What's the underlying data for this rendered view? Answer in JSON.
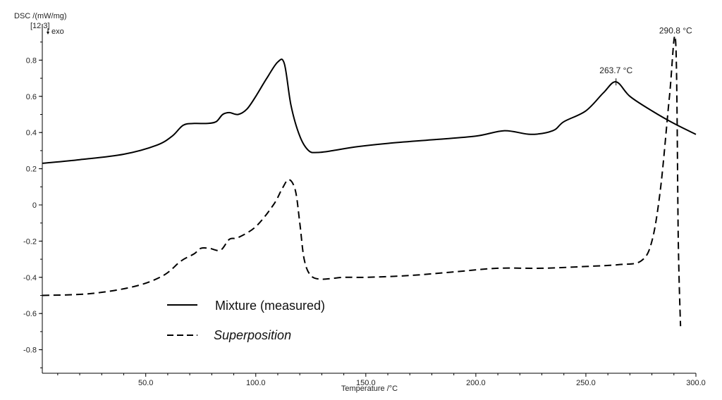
{
  "chart_data": {
    "type": "line",
    "ylabel": "DSC /(mW/mg)",
    "ylabel_sub": "[12.3]",
    "exo_label": "exo",
    "xlabel": "Temperature /°C",
    "xlim": [
      3,
      300
    ],
    "ylim": [
      -0.93,
      1.0
    ],
    "x_ticks": [
      50,
      100,
      150,
      200,
      250,
      300
    ],
    "x_tick_labels": [
      "50.0",
      "100.0",
      "150.0",
      "200.0",
      "250.0",
      "300.0"
    ],
    "y_ticks": [
      -0.8,
      -0.6,
      -0.4,
      -0.2,
      0,
      0.2,
      0.4,
      0.6,
      0.8
    ],
    "y_tick_labels": [
      "-0.8",
      "-0.6",
      "-0.4",
      "-0.2",
      "0",
      "0.2",
      "0.4",
      "0.6",
      "0.8"
    ],
    "grid": false,
    "legend_position": "bottom-left",
    "series": [
      {
        "name": "Mixture (measured)",
        "style": "solid",
        "italic": false,
        "color": "#000000",
        "x": [
          3,
          20,
          40,
          55,
          62,
          67,
          72,
          78,
          82,
          85,
          88,
          92,
          96,
          100,
          105,
          110,
          113,
          116,
          120,
          124,
          128,
          135,
          145,
          160,
          180,
          200,
          213,
          225,
          235,
          240,
          250,
          258,
          263.7,
          270,
          280,
          290,
          300
        ],
        "y": [
          0.23,
          0.25,
          0.28,
          0.33,
          0.38,
          0.44,
          0.45,
          0.45,
          0.46,
          0.5,
          0.51,
          0.5,
          0.53,
          0.6,
          0.7,
          0.79,
          0.78,
          0.55,
          0.38,
          0.3,
          0.29,
          0.3,
          0.32,
          0.34,
          0.36,
          0.38,
          0.41,
          0.39,
          0.41,
          0.46,
          0.52,
          0.62,
          0.68,
          0.6,
          0.52,
          0.45,
          0.39
        ]
      },
      {
        "name": "Superposition",
        "style": "dashed",
        "italic": true,
        "color": "#000000",
        "x": [
          3,
          25,
          45,
          58,
          66,
          72,
          75,
          79,
          84,
          88,
          92,
          100,
          108,
          112,
          115,
          118,
          120,
          122,
          125,
          130,
          140,
          150,
          170,
          190,
          210,
          230,
          250,
          265,
          275,
          280,
          284,
          288,
          290.8,
          292,
          293
        ],
        "y": [
          -0.5,
          -0.49,
          -0.45,
          -0.39,
          -0.31,
          -0.27,
          -0.24,
          -0.24,
          -0.25,
          -0.19,
          -0.18,
          -0.12,
          0.0,
          0.09,
          0.14,
          0.08,
          -0.1,
          -0.3,
          -0.39,
          -0.41,
          -0.4,
          -0.4,
          -0.39,
          -0.37,
          -0.35,
          -0.35,
          -0.34,
          -0.33,
          -0.31,
          -0.2,
          0.1,
          0.6,
          0.9,
          -0.2,
          -0.67
        ]
      }
    ],
    "annotations": [
      {
        "label": "263.7 °C",
        "x": 263.7,
        "y": 0.68
      },
      {
        "label": "290.8 °C",
        "x": 290.8,
        "y": 0.9
      }
    ]
  }
}
